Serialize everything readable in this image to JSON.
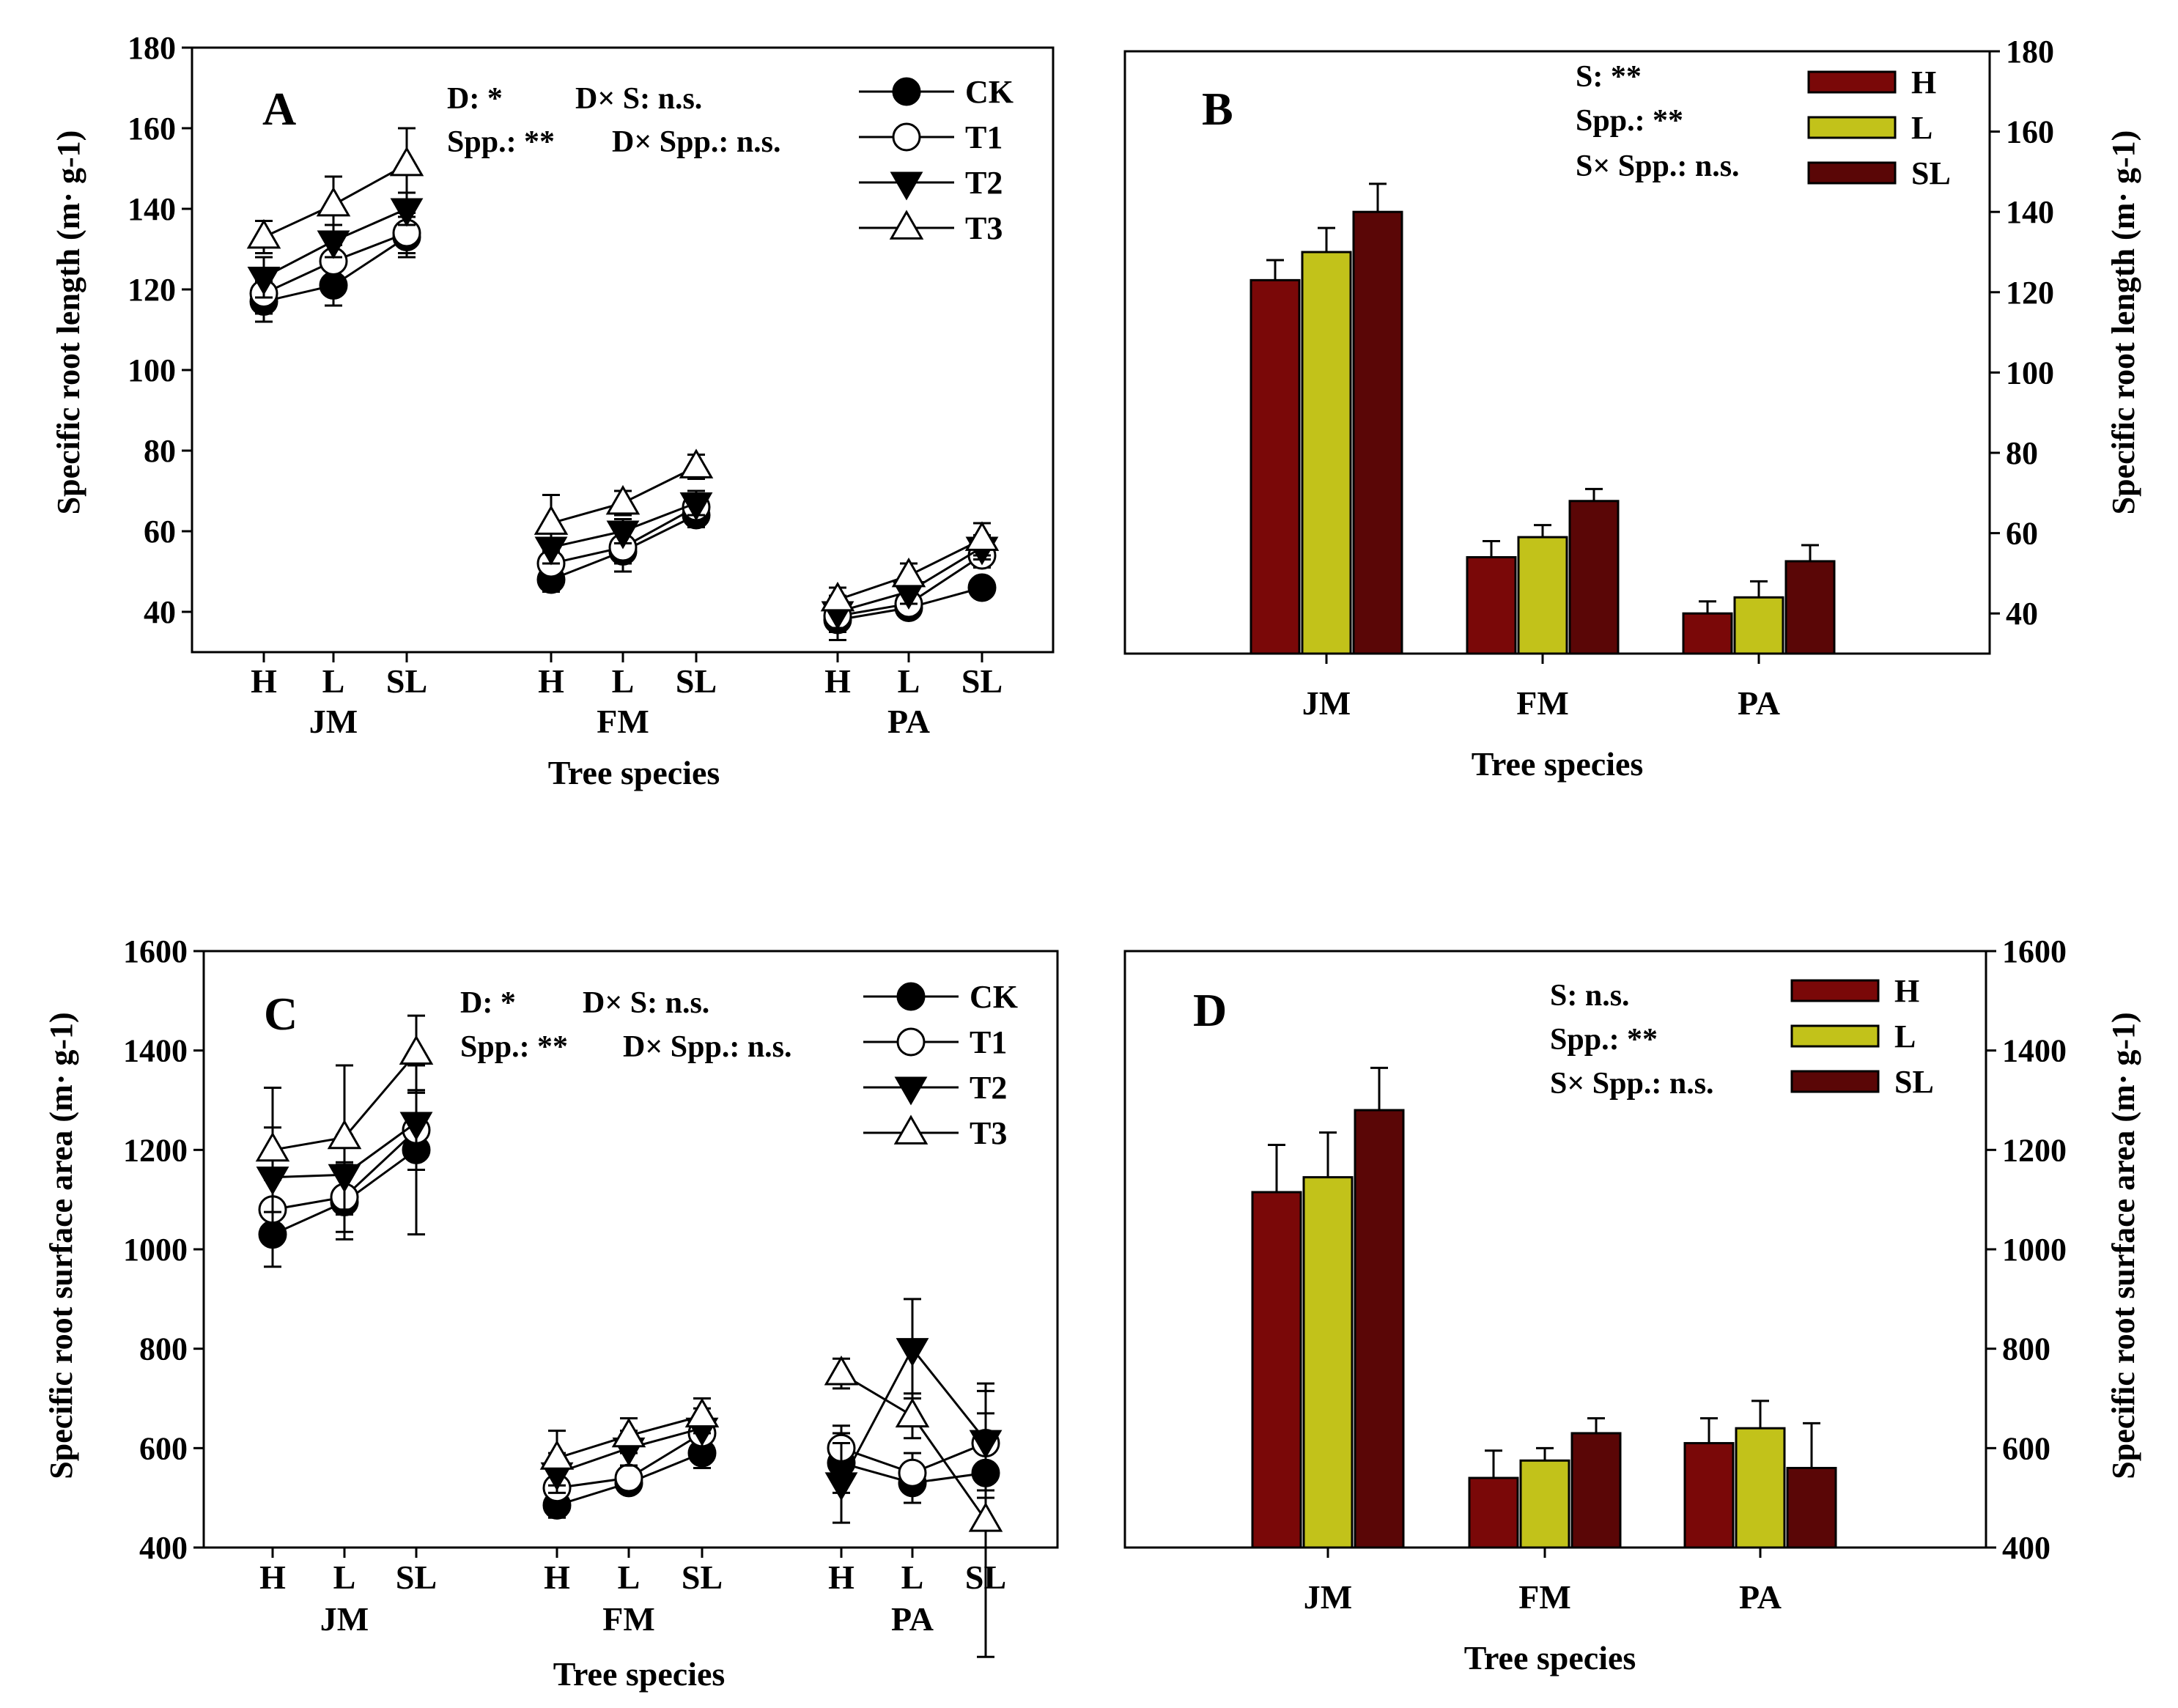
{
  "colors": {
    "H": "#7a0808",
    "L": "#c2c21a",
    "SL": "#5a0606",
    "axis": "#000000"
  },
  "treatments": [
    "CK",
    "T1",
    "T2",
    "T3"
  ],
  "chart_data": [
    {
      "id": "A",
      "type": "line",
      "panel_label": "A",
      "xlabel": "Tree species",
      "ylabel": "Specific root length (m· g-1)",
      "ylim": [
        30,
        180
      ],
      "yticks": [
        40,
        60,
        80,
        100,
        120,
        140,
        160,
        180
      ],
      "groups": [
        {
          "name": "JM",
          "categories": [
            "H",
            "L",
            "SL"
          ]
        },
        {
          "name": "FM",
          "categories": [
            "H",
            "L",
            "SL"
          ]
        },
        {
          "name": "PA",
          "categories": [
            "H",
            "L",
            "SL"
          ]
        }
      ],
      "series": [
        {
          "name": "CK",
          "values": [
            [
              117,
              121,
              133
            ],
            [
              48,
              55,
              64
            ],
            [
              38,
              41,
              46
            ]
          ],
          "errors": [
            [
              5,
              5,
              5
            ],
            [
              3,
              5,
              3
            ],
            [
              5,
              2,
              2
            ]
          ]
        },
        {
          "name": "T1",
          "values": [
            [
              119,
              127,
              134
            ],
            [
              52,
              56,
              66
            ],
            [
              39,
              42,
              54
            ]
          ],
          "errors": [
            [
              5,
              4,
              5
            ],
            [
              3,
              4,
              3
            ],
            [
              4,
              3,
              3
            ]
          ]
        },
        {
          "name": "T2",
          "values": [
            [
              123,
              132,
              140
            ],
            [
              56,
              60,
              67
            ],
            [
              40,
              45,
              56
            ]
          ],
          "errors": [
            [
              5,
              4,
              4
            ],
            [
              4,
              3,
              3
            ],
            [
              4,
              3,
              3
            ]
          ]
        },
        {
          "name": "T3",
          "values": [
            [
              133,
              141,
              151
            ],
            [
              62,
              67,
              76
            ],
            [
              43,
              49,
              58
            ]
          ],
          "errors": [
            [
              4,
              7,
              9
            ],
            [
              7,
              3,
              3
            ],
            [
              3,
              3,
              4
            ]
          ]
        }
      ],
      "stats": [
        "D: *",
        "D× S: n.s.",
        "Spp.: **",
        "D× Spp.: n.s."
      ]
    },
    {
      "id": "B",
      "type": "bar",
      "panel_label": "B",
      "xlabel": "Tree species",
      "ylabel": "Specific root length (m· g-1)",
      "ylim": [
        30,
        180
      ],
      "yticks": [
        40,
        60,
        80,
        100,
        120,
        140,
        160,
        180
      ],
      "categories": [
        "JM",
        "FM",
        "PA"
      ],
      "series": [
        {
          "name": "H",
          "values": [
            123,
            54,
            40
          ],
          "errors": [
            5,
            4,
            3
          ]
        },
        {
          "name": "L",
          "values": [
            130,
            59,
            44
          ],
          "errors": [
            6,
            3,
            4
          ]
        },
        {
          "name": "SL",
          "values": [
            140,
            68,
            53
          ],
          "errors": [
            7,
            3,
            4
          ]
        }
      ],
      "stats": [
        "S: **",
        "Spp.: **",
        "S× Spp.: n.s."
      ]
    },
    {
      "id": "C",
      "type": "line",
      "panel_label": "C",
      "xlabel": "Tree species",
      "ylabel": "Specific root surface area (m· g-1)",
      "ylim": [
        400,
        1600
      ],
      "yticks": [
        400,
        600,
        800,
        1000,
        1200,
        1400,
        1600
      ],
      "groups": [
        {
          "name": "JM",
          "categories": [
            "H",
            "L",
            "SL"
          ]
        },
        {
          "name": "FM",
          "categories": [
            "H",
            "L",
            "SL"
          ]
        },
        {
          "name": "PA",
          "categories": [
            "H",
            "L",
            "SL"
          ]
        }
      ],
      "series": [
        {
          "name": "CK",
          "values": [
            [
              1030,
              1095,
              1200
            ],
            [
              485,
              530,
              590
            ],
            [
              570,
              530,
              550
            ]
          ],
          "errors": [
            [
              65,
              75,
              170
            ],
            [
              25,
              20,
              30
            ],
            [
              60,
              40,
              50
            ]
          ]
        },
        {
          "name": "T1",
          "values": [
            [
              1080,
              1105,
              1240
            ],
            [
              520,
              540,
              630
            ],
            [
              600,
              550,
              610
            ]
          ],
          "errors": [
            [
              60,
              70,
              80
            ],
            [
              30,
              25,
              30
            ],
            [
              45,
              40,
              60
            ]
          ]
        },
        {
          "name": "T2",
          "values": [
            [
              1145,
              1150,
              1255
            ],
            [
              550,
              600,
              640
            ],
            [
              530,
              800,
              615
            ]
          ],
          "errors": [
            [
              100,
              80,
              60
            ],
            [
              40,
              35,
              40
            ],
            [
              80,
              100,
              100
            ]
          ]
        },
        {
          "name": "T3",
          "values": [
            [
              1200,
              1225,
              1395
            ],
            [
              580,
              625,
              665
            ],
            [
              750,
              665,
              455
            ]
          ],
          "errors": [
            [
              125,
              145,
              75
            ],
            [
              55,
              35,
              35
            ],
            [
              30,
              45,
              275
            ]
          ]
        }
      ],
      "stats": [
        "D: *",
        "D× S: n.s.",
        "Spp.: **",
        "D× Spp.: n.s."
      ]
    },
    {
      "id": "D",
      "type": "bar",
      "panel_label": "D",
      "xlabel": "Tree species",
      "ylabel": "Specific root surface area (m· g-1)",
      "ylim": [
        400,
        1600
      ],
      "yticks": [
        400,
        600,
        800,
        1000,
        1200,
        1400,
        1600
      ],
      "categories": [
        "JM",
        "FM",
        "PA"
      ],
      "series": [
        {
          "name": "H",
          "values": [
            1115,
            540,
            610
          ],
          "errors": [
            95,
            55,
            50
          ]
        },
        {
          "name": "L",
          "values": [
            1145,
            575,
            640
          ],
          "errors": [
            90,
            25,
            55
          ]
        },
        {
          "name": "SL",
          "values": [
            1280,
            630,
            560
          ],
          "errors": [
            85,
            30,
            90
          ]
        }
      ],
      "stats": [
        "S: n.s.",
        "Spp.: **",
        "S× Spp.: n.s."
      ]
    }
  ]
}
